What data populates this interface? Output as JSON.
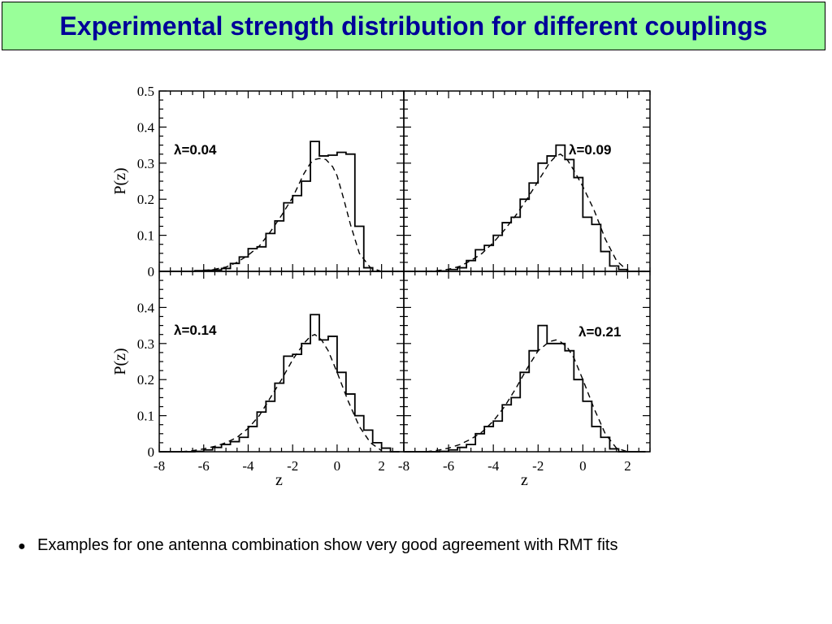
{
  "slide": {
    "title": "Experimental strength distribution for different couplings",
    "bullet_marker": "●",
    "bullet_text": "Examples for one antenna combination show very good agreement with RMT fits",
    "colors": {
      "title_bg": "#99ff99",
      "title_text": "#000099"
    }
  },
  "chart_data": [
    {
      "type": "line",
      "annotation": "λ=0.04",
      "xlim": [
        -8,
        3
      ],
      "ylim": [
        0,
        0.5
      ],
      "ylabel": "P(z)",
      "xlabel": "",
      "yticks": [
        "0",
        "0.1",
        "0.2",
        "0.3",
        "0.4",
        "0.5"
      ],
      "xticks": [],
      "series": [
        {
          "style": "step",
          "bin_edges": [
            -8,
            -7.6,
            -7.2,
            -6.8,
            -6.4,
            -6,
            -5.6,
            -5.2,
            -4.8,
            -4.4,
            -4,
            -3.6,
            -3.2,
            -2.8,
            -2.4,
            -2,
            -1.6,
            -1.2,
            -0.8,
            -0.4,
            0,
            0.4,
            0.8,
            1.2,
            1.6,
            2,
            2.4,
            2.8
          ],
          "values": [
            0,
            0,
            0,
            0,
            0.002,
            0.003,
            0.004,
            0.008,
            0.022,
            0.04,
            0.063,
            0.068,
            0.105,
            0.14,
            0.19,
            0.21,
            0.25,
            0.36,
            0.32,
            0.322,
            0.33,
            0.325,
            0.125,
            0.01,
            0,
            0,
            0
          ]
        },
        {
          "style": "dashed",
          "x": [
            -6,
            -5.5,
            -5,
            -4.5,
            -4,
            -3.5,
            -3,
            -2.5,
            -2,
            -1.5,
            -1.2,
            -1,
            -0.8,
            -0.5,
            -0.2,
            0,
            0.3,
            0.6,
            1,
            1.5,
            2
          ],
          "y": [
            0.002,
            0.006,
            0.012,
            0.025,
            0.045,
            0.07,
            0.11,
            0.155,
            0.205,
            0.27,
            0.3,
            0.31,
            0.313,
            0.31,
            0.29,
            0.265,
            0.2,
            0.13,
            0.05,
            0.01,
            0
          ]
        }
      ]
    },
    {
      "type": "line",
      "annotation": "λ=0.09",
      "xlim": [
        -8,
        3
      ],
      "ylim": [
        0,
        0.5
      ],
      "ylabel": "",
      "xlabel": "",
      "yticks": [],
      "xticks": [],
      "series": [
        {
          "style": "step",
          "bin_edges": [
            -8,
            -7.6,
            -7.2,
            -6.8,
            -6.4,
            -6,
            -5.6,
            -5.2,
            -4.8,
            -4.4,
            -4,
            -3.6,
            -3.2,
            -2.8,
            -2.4,
            -2,
            -1.6,
            -1.2,
            -0.8,
            -0.4,
            0,
            0.4,
            0.8,
            1.2,
            1.6,
            2,
            2.4,
            2.8
          ],
          "values": [
            0,
            0,
            0,
            0,
            0.001,
            0.005,
            0.01,
            0.03,
            0.06,
            0.072,
            0.1,
            0.135,
            0.15,
            0.2,
            0.245,
            0.3,
            0.32,
            0.35,
            0.31,
            0.26,
            0.15,
            0.13,
            0.055,
            0.015,
            0.005,
            0,
            0
          ]
        },
        {
          "style": "dashed",
          "x": [
            -7,
            -6.5,
            -6,
            -5.5,
            -5,
            -4.5,
            -4,
            -3.5,
            -3,
            -2.5,
            -2,
            -1.5,
            -1.2,
            -1,
            -0.7,
            -0.4,
            0,
            0.5,
            1,
            1.5,
            2
          ],
          "y": [
            0,
            0.002,
            0.006,
            0.014,
            0.03,
            0.05,
            0.08,
            0.115,
            0.155,
            0.2,
            0.25,
            0.3,
            0.32,
            0.325,
            0.31,
            0.28,
            0.235,
            0.17,
            0.09,
            0.03,
            0.002
          ]
        }
      ]
    },
    {
      "type": "line",
      "annotation": "λ=0.14",
      "xlim": [
        -8,
        3
      ],
      "ylim": [
        0,
        0.5
      ],
      "ylabel": "P(z)",
      "xlabel": "z",
      "yticks": [
        "0",
        "0.1",
        "0.2",
        "0.3",
        "0.4"
      ],
      "xticks": [
        "-8",
        "-6",
        "-4",
        "-2",
        "0",
        "2"
      ],
      "series": [
        {
          "style": "step",
          "bin_edges": [
            -8,
            -7.6,
            -7.2,
            -6.8,
            -6.4,
            -6,
            -5.6,
            -5.2,
            -4.8,
            -4.4,
            -4,
            -3.6,
            -3.2,
            -2.8,
            -2.4,
            -2,
            -1.6,
            -1.2,
            -0.8,
            -0.4,
            0,
            0.4,
            0.8,
            1.2,
            1.6,
            2,
            2.4,
            2.8
          ],
          "values": [
            0,
            0,
            0,
            0,
            0.001,
            0.005,
            0.012,
            0.02,
            0.028,
            0.04,
            0.07,
            0.11,
            0.14,
            0.19,
            0.265,
            0.27,
            0.3,
            0.38,
            0.31,
            0.32,
            0.22,
            0.16,
            0.1,
            0.06,
            0.025,
            0.01,
            0
          ]
        },
        {
          "style": "dashed",
          "x": [
            -7,
            -6.5,
            -6,
            -5.5,
            -5,
            -4.5,
            -4,
            -3.5,
            -3,
            -2.5,
            -2,
            -1.5,
            -1.2,
            -1,
            -0.7,
            -0.4,
            0,
            0.5,
            1,
            1.5,
            2
          ],
          "y": [
            0,
            0.003,
            0.008,
            0.015,
            0.025,
            0.04,
            0.065,
            0.1,
            0.15,
            0.2,
            0.255,
            0.3,
            0.32,
            0.325,
            0.31,
            0.28,
            0.22,
            0.14,
            0.07,
            0.025,
            0.003
          ]
        }
      ]
    },
    {
      "type": "line",
      "annotation": "λ=0.21",
      "xlim": [
        -8,
        3
      ],
      "ylim": [
        0,
        0.5
      ],
      "ylabel": "",
      "xlabel": "z",
      "yticks": [],
      "xticks": [
        "-8",
        "-6",
        "-4",
        "-2",
        "0",
        "2"
      ],
      "series": [
        {
          "style": "step",
          "bin_edges": [
            -8,
            -7.6,
            -7.2,
            -6.8,
            -6.4,
            -6,
            -5.6,
            -5.2,
            -4.8,
            -4.4,
            -4,
            -3.6,
            -3.2,
            -2.8,
            -2.4,
            -2,
            -1.6,
            -1.2,
            -0.8,
            -0.4,
            0,
            0.4,
            0.8,
            1.2,
            1.6,
            2,
            2.4,
            2.8
          ],
          "values": [
            0,
            0,
            0,
            0,
            0.001,
            0.005,
            0.012,
            0.02,
            0.05,
            0.07,
            0.085,
            0.13,
            0.15,
            0.22,
            0.28,
            0.35,
            0.3,
            0.3,
            0.28,
            0.2,
            0.14,
            0.07,
            0.04,
            0.008,
            0,
            0,
            0
          ]
        },
        {
          "style": "dashed",
          "x": [
            -7,
            -6.5,
            -6,
            -5.5,
            -5,
            -4.5,
            -4,
            -3.5,
            -3,
            -2.5,
            -2,
            -1.5,
            -1.2,
            -1,
            -0.7,
            -0.4,
            0,
            0.5,
            1,
            1.5,
            2
          ],
          "y": [
            0,
            0.004,
            0.01,
            0.02,
            0.035,
            0.055,
            0.085,
            0.125,
            0.175,
            0.23,
            0.28,
            0.305,
            0.31,
            0.305,
            0.29,
            0.26,
            0.2,
            0.12,
            0.05,
            0.01,
            0
          ]
        }
      ]
    }
  ]
}
